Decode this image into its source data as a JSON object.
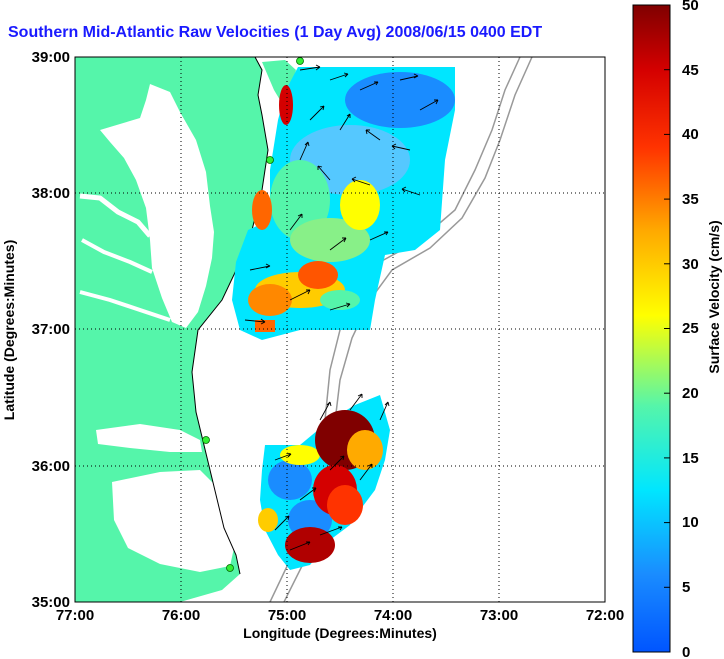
{
  "title": "Southern Mid-Atlantic Raw Velocities (1 Day Avg) 2008/06/15 0400 EDT",
  "x_axis": {
    "label": "Longitude (Degrees:Minutes)",
    "ticks": [
      "77:00",
      "76:00",
      "75:00",
      "74:00",
      "73:00",
      "72:00"
    ]
  },
  "y_axis": {
    "label": "Latitude (Degrees:Minutes)",
    "ticks": [
      "39:00",
      "38:00",
      "37:00",
      "36:00",
      "35:00"
    ]
  },
  "colorbar": {
    "label": "Surface Velocity (cm/s)",
    "min": 0,
    "max": 50,
    "ticks": [
      "0",
      "5",
      "10",
      "15",
      "20",
      "25",
      "30",
      "35",
      "40",
      "45",
      "50"
    ]
  },
  "colors": {
    "land": "#55f5aa",
    "water": "#ffffff",
    "title": "#1a1aff",
    "station": "#33ee33"
  },
  "map": {
    "lon_range": [
      -77,
      -72
    ],
    "lat_range": [
      35,
      39
    ],
    "grid": "dotted",
    "stations": [
      "station-1",
      "station-2",
      "station-3",
      "station-4"
    ]
  }
}
